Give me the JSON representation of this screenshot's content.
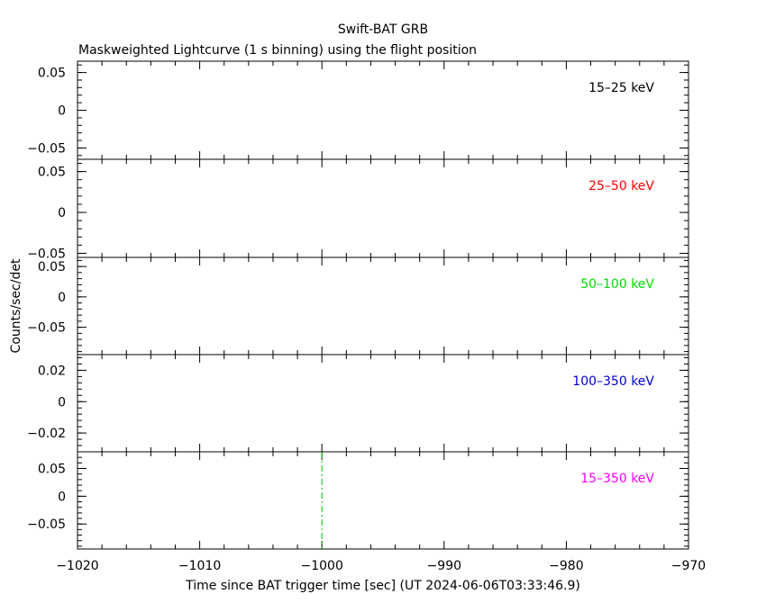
{
  "figure": {
    "title": "Swift-BAT GRB",
    "subtitle": "Maskweighted Lightcurve (1 s binning) using the flight position",
    "xlabel": "Time since BAT trigger time [sec] (UT 2024-06-06T03:33:46.9)",
    "ylabel": "Counts/sec/det"
  },
  "chart_data": {
    "type": "line",
    "xlim": [
      -1020,
      -970
    ],
    "x_ticks": [
      -1020,
      -1010,
      -1000,
      -990,
      -980,
      -970
    ],
    "x_tick_labels": [
      "−1020",
      "−1010",
      "−1000",
      "−990",
      "−980",
      "−970"
    ],
    "markers": [
      {
        "x": -1000,
        "panel": 4,
        "style": "dash-dot",
        "color": "#00c000"
      }
    ],
    "panels": [
      {
        "band": "15–25 keV",
        "color": "#000000",
        "ylim": [
          -0.065,
          0.065
        ],
        "y_ticks": [
          0.05,
          0,
          -0.05
        ],
        "y_tick_labels": [
          "0.05",
          "0",
          "−0.05"
        ],
        "series": []
      },
      {
        "band": "25–50 keV",
        "color": "#ff0000",
        "ylim": [
          -0.055,
          0.065
        ],
        "y_ticks": [
          0.05,
          0,
          -0.05
        ],
        "y_tick_labels": [
          "0.05",
          "0",
          "−0.05"
        ],
        "series": []
      },
      {
        "band": "50–100 keV",
        "color": "#00dd00",
        "ylim": [
          -0.095,
          0.065
        ],
        "y_ticks": [
          0.05,
          0,
          -0.05
        ],
        "y_tick_labels": [
          "0.05",
          "0",
          "−0.05"
        ],
        "series": []
      },
      {
        "band": "100–350 keV",
        "color": "#0000cc",
        "ylim": [
          -0.032,
          0.03
        ],
        "y_ticks": [
          0.02,
          0,
          -0.02
        ],
        "y_tick_labels": [
          "0.02",
          "0",
          "−0.02"
        ],
        "series": []
      },
      {
        "band": "15–350 keV",
        "color": "#ff00ff",
        "ylim": [
          -0.095,
          0.08
        ],
        "y_ticks": [
          0.05,
          0,
          -0.05
        ],
        "y_tick_labels": [
          "0.05",
          "0",
          "−0.05"
        ],
        "series": []
      }
    ]
  }
}
